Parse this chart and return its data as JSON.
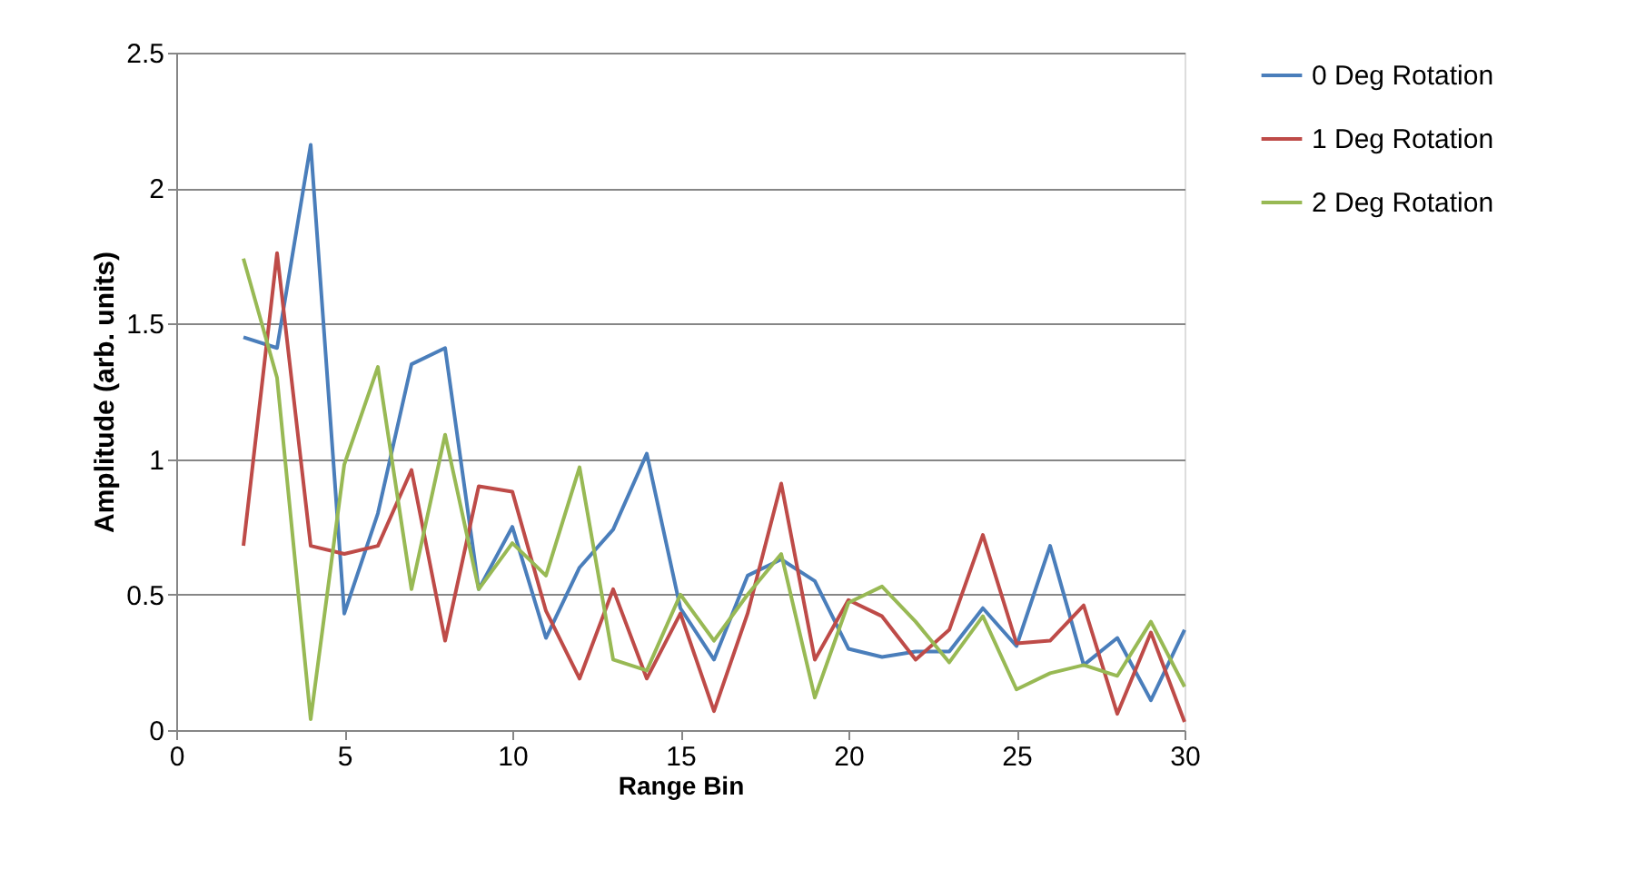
{
  "chart_data": {
    "type": "line",
    "xlabel": "Range Bin",
    "ylabel": "Amplitude (arb. units)",
    "x": [
      2,
      3,
      4,
      5,
      6,
      7,
      8,
      9,
      10,
      11,
      12,
      13,
      14,
      15,
      16,
      17,
      18,
      19,
      20,
      21,
      22,
      23,
      24,
      25,
      26,
      27,
      28,
      29,
      30
    ],
    "series": [
      {
        "name": "0 Deg Rotation",
        "color": "#4a7ebb",
        "values": [
          1.45,
          1.41,
          2.16,
          0.43,
          0.8,
          1.35,
          1.41,
          0.52,
          0.75,
          0.34,
          0.6,
          0.74,
          1.02,
          0.45,
          0.26,
          0.57,
          0.63,
          0.55,
          0.3,
          0.27,
          0.29,
          0.29,
          0.45,
          0.31,
          0.68,
          0.24,
          0.34,
          0.11,
          0.37
        ]
      },
      {
        "name": "1 Deg Rotation",
        "color": "#be4b48",
        "values": [
          0.68,
          1.76,
          0.68,
          0.65,
          0.68,
          0.96,
          0.33,
          0.9,
          0.88,
          0.44,
          0.19,
          0.52,
          0.19,
          0.43,
          0.07,
          0.43,
          0.91,
          0.26,
          0.48,
          0.42,
          0.26,
          0.37,
          0.72,
          0.32,
          0.33,
          0.46,
          0.06,
          0.36,
          0.03
        ]
      },
      {
        "name": "2 Deg Rotation",
        "color": "#98b954",
        "values": [
          1.74,
          1.3,
          0.04,
          0.98,
          1.34,
          0.52,
          1.09,
          0.52,
          0.69,
          0.57,
          0.97,
          0.26,
          0.22,
          0.5,
          0.33,
          0.5,
          0.65,
          0.12,
          0.47,
          0.53,
          0.4,
          0.25,
          0.42,
          0.15,
          0.21,
          0.24,
          0.2,
          0.4,
          0.16
        ]
      }
    ],
    "xlim": [
      0,
      30
    ],
    "xticks": [
      0,
      5,
      10,
      15,
      20,
      25,
      30
    ],
    "ylim": [
      0,
      2.5
    ],
    "yticks": [
      0,
      0.5,
      1,
      1.5,
      2,
      2.5
    ],
    "grid": "y",
    "legend": "right",
    "marker": "none",
    "line_style": "solid"
  }
}
